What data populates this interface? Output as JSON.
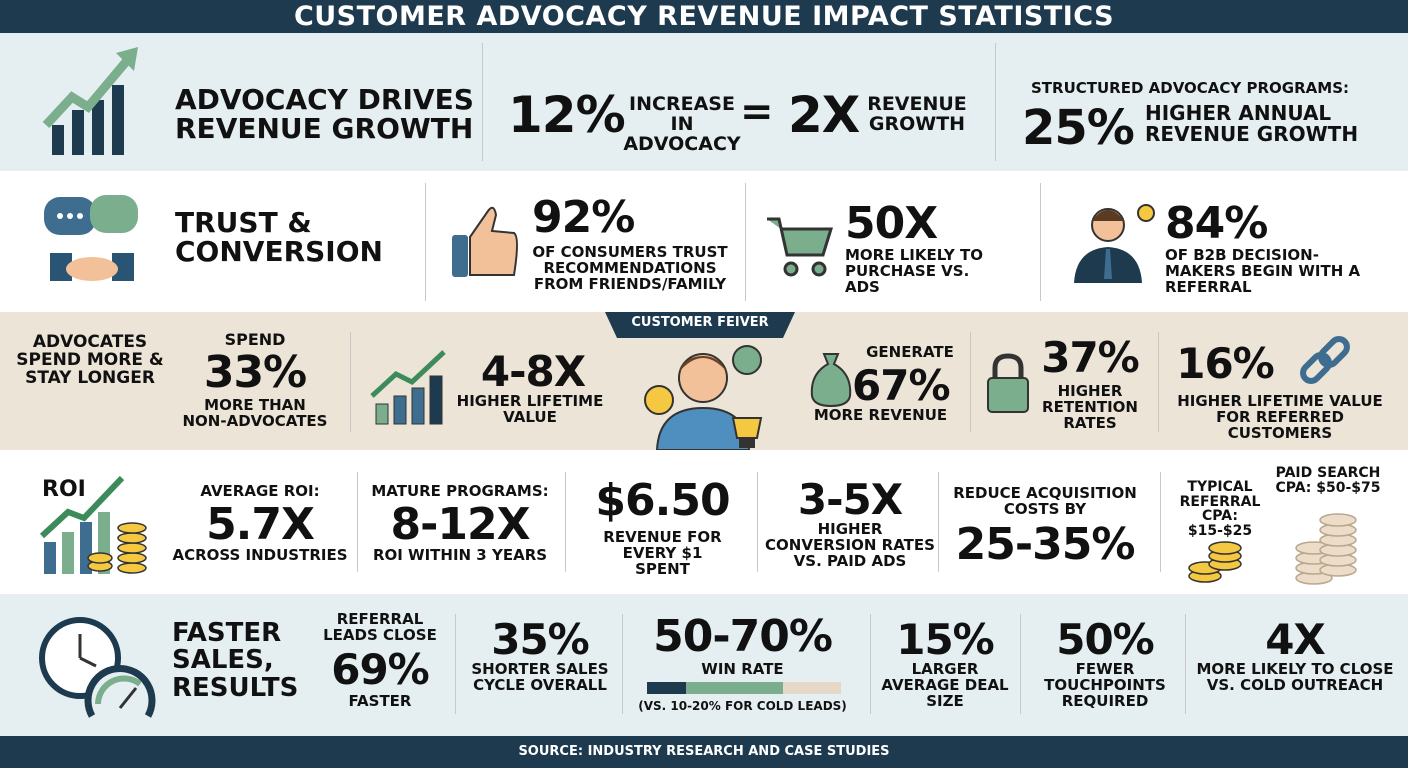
{
  "title": "CUSTOMER ADVOCACY REVENUE IMPACT STATISTICS",
  "source": "SOURCE: INDUSTRY RESEARCH AND CASE STUDIES",
  "colors": {
    "navy": "#1d3a4f",
    "green": "#7aae8c",
    "beige": "#e6d8c8",
    "row_blue": "#e5eff2",
    "row_beige": "#ece4d7"
  },
  "row1": {
    "heading": "ADVOCACY DRIVES REVENUE GROWTH",
    "stat1_value": "12%",
    "stat1_label": "INCREASE IN ADVOCACY",
    "equals": "=",
    "stat2_value": "2X",
    "stat2_label": "REVENUE GROWTH",
    "stat3_top": "STRUCTURED ADVOCACY PROGRAMS:",
    "stat3_value": "25%",
    "stat3_label": "HIGHER ANNUAL REVENUE GROWTH"
  },
  "row2": {
    "heading": "TRUST & CONVERSION",
    "stats": [
      {
        "value": "92%",
        "label": "OF CONSUMERS TRUST RECOMMENDATIONS FROM FRIENDS/FAMILY"
      },
      {
        "value": "50X",
        "label": "MORE LIKELY TO PURCHASE VS. ADS"
      },
      {
        "value": "84%",
        "label": "OF B2B DECISION-MAKERS BEGIN WITH A REFERRAL"
      }
    ]
  },
  "row3": {
    "heading": "ADVOCATES SPEND MORE & STAY LONGER",
    "banner": "CUSTOMER FEIVER",
    "spend_top": "SPEND",
    "spend_value": "33%",
    "spend_label": "MORE THAN NON-ADVOCATES",
    "ltv_value": "4-8X",
    "ltv_label": "HIGHER LIFETIME VALUE",
    "gen_top": "GENERATE",
    "gen_value": "67%",
    "gen_label": "MORE REVENUE",
    "ret_value": "37%",
    "ret_label": "HIGHER RETENTION RATES",
    "ref_value": "16%",
    "ref_label": "HIGHER LIFETIME VALUE FOR REFERRED CUSTOMERS"
  },
  "row4": {
    "heading": "ROI",
    "avg_top": "AVERAGE ROI:",
    "avg_value": "5.7X",
    "avg_label": "ACROSS INDUSTRIES",
    "mature_top": "MATURE PROGRAMS:",
    "mature_value": "8-12X",
    "mature_label": "ROI WITHIN 3 YEARS",
    "rev_value": "$6.50",
    "rev_label": "REVENUE FOR EVERY $1 SPENT",
    "conv_value": "3-5X",
    "conv_label": "HIGHER CONVERSION RATES VS. PAID ADS",
    "cost_top": "REDUCE ACQUISITION COSTS BY",
    "cost_value": "25-35%",
    "typical_label": "TYPICAL REFERRAL CPA: $15-$25",
    "paid_label": "PAID SEARCH CPA: $50-$75"
  },
  "row5": {
    "heading": "FASTER SALES, RESULTS",
    "close_top": "REFERRAL LEADS CLOSE",
    "close_value": "69%",
    "close_label": "FASTER",
    "cycle_value": "35%",
    "cycle_label": "SHORTER SALES CYCLE OVERALL",
    "win_value": "50-70%",
    "win_label": "WIN RATE",
    "win_note": "(VS. 10-20% FOR COLD LEADS)",
    "win_bar": {
      "cold_leads_pct": [
        10,
        20
      ],
      "win_rate_pct": [
        50,
        70
      ]
    },
    "deal_value": "15%",
    "deal_label": "LARGER AVERAGE DEAL SIZE",
    "touch_value": "50%",
    "touch_label": "FEWER TOUCHPOINTS REQUIRED",
    "close4_value": "4X",
    "close4_label": "MORE LIKELY TO CLOSE VS. COLD OUTREACH"
  }
}
